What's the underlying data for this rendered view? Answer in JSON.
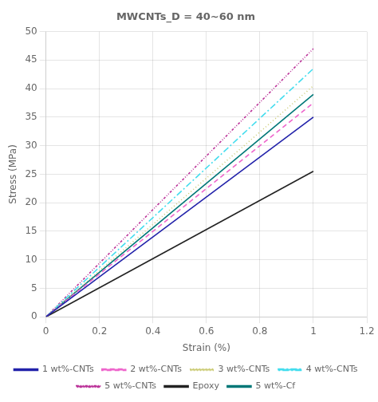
{
  "chart_data": {
    "type": "line",
    "title": "MWCNTs_D = 40~60 nm",
    "x_label": "Strain (%)",
    "y_label": "Stress (MPa)",
    "x": [
      0,
      1
    ],
    "series": [
      {
        "name": "1 wt%-CNTs",
        "color": "#2222aa",
        "line_style": "solid",
        "values": [
          0,
          35.0
        ]
      },
      {
        "name": "2 wt%-CNTs",
        "color": "#ee66cc",
        "line_style": "dashed",
        "values": [
          0,
          37.5
        ]
      },
      {
        "name": "3 wt%-CNTs",
        "color": "#cccc77",
        "line_style": "dotted",
        "values": [
          0,
          40.5
        ]
      },
      {
        "name": "4 wt%-CNTs",
        "color": "#44ddee",
        "line_style": "dashdot",
        "values": [
          0,
          43.5
        ]
      },
      {
        "name": "5 wt%-CNTs",
        "color": "#bb3399",
        "line_style": "dashdotdot",
        "values": [
          0,
          47.0
        ]
      },
      {
        "name": "Epoxy",
        "color": "#222222",
        "line_style": "solid",
        "values": [
          0,
          25.5
        ]
      },
      {
        "name": "5 wt%-Cf",
        "color": "#007777",
        "line_style": "solid",
        "values": [
          0,
          39.0
        ]
      }
    ],
    "xlim": [
      0,
      1.2
    ],
    "ylim": [
      0,
      50
    ],
    "xticks": [
      0,
      0.2,
      0.4,
      0.6,
      0.8,
      1,
      1.2
    ],
    "yticks": [
      0,
      5,
      10,
      15,
      20,
      25,
      30,
      35,
      40,
      45,
      50
    ],
    "grid": true,
    "legend": "bottom"
  }
}
